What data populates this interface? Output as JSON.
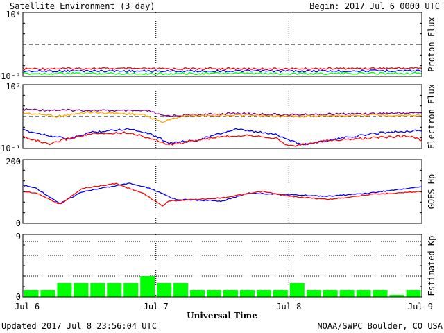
{
  "header": {
    "title": "Satellite Environment (3 day)",
    "begin": "Begin:  2017 Jul 6 0000 UTC"
  },
  "footer": {
    "updated": "Updated 2017 Jul  8 23:56:04 UTC",
    "credit": "NOAA/SWPC Boulder, CO USA"
  },
  "chart_data": [
    {
      "type": "line",
      "name": "proton",
      "ylabel": "Proton Flux",
      "yscale": "log",
      "ylim": [
        0.01,
        10000
      ],
      "yticks": [
        "10⁴",
        "10⁻²"
      ],
      "threshold": 10,
      "series": [
        {
          "color": "#ff0000",
          "x": [
            0,
            0.5,
            1,
            1.5,
            2,
            2.5,
            3
          ],
          "y": [
            0.05,
            0.055,
            0.05,
            0.052,
            0.05,
            0.055,
            0.06
          ]
        },
        {
          "color": "#0000ff",
          "x": [
            0,
            0.5,
            1,
            1.5,
            2,
            2.5,
            3
          ],
          "y": [
            0.03,
            0.032,
            0.03,
            0.031,
            0.03,
            0.032,
            0.034
          ]
        },
        {
          "color": "#00ff00",
          "x": [
            0,
            0.5,
            1,
            1.5,
            2,
            2.5,
            3
          ],
          "y": [
            0.018,
            0.019,
            0.018,
            0.019,
            0.018,
            0.019,
            0.02
          ]
        }
      ]
    },
    {
      "type": "line",
      "name": "electron",
      "ylabel": "Electron Flux",
      "yscale": "log",
      "ylim": [
        0.1,
        10000000
      ],
      "yticks": [
        "10⁷",
        "10⁻¹"
      ],
      "threshold": 1000,
      "series": [
        {
          "color": "#800080",
          "x": [
            0,
            0.15,
            0.5,
            0.95,
            1.05,
            1.3,
            1.6,
            2.0,
            2.5,
            3.0
          ],
          "y": [
            8000,
            6500,
            6000,
            4800,
            1200,
            1600,
            2500,
            1600,
            2200,
            3000
          ]
        },
        {
          "color": "#ffa500",
          "x": [
            0,
            0.2,
            0.25,
            0.5,
            0.9,
            1.0,
            1.05,
            1.2,
            1.5,
            2.0,
            2.5,
            3.0
          ],
          "y": [
            2800,
            1500,
            1000,
            3500,
            1800,
            400,
            200,
            1200,
            1600,
            1000,
            1500,
            1400
          ]
        },
        {
          "color": "#0000ff",
          "x": [
            0,
            0.2,
            0.35,
            0.5,
            0.8,
            0.95,
            1.1,
            1.3,
            1.6,
            1.9,
            2.1,
            2.4,
            2.7,
            3.0
          ],
          "y": [
            20,
            4,
            1.5,
            10,
            30,
            8,
            0.5,
            1,
            25,
            6,
            0.3,
            2,
            10,
            18
          ]
        },
        {
          "color": "#ff0000",
          "x": [
            0,
            0.1,
            0.2,
            0.3,
            0.5,
            0.8,
            0.95,
            1.1,
            1.3,
            1.5,
            1.7,
            1.9,
            2.0,
            2.1,
            2.3,
            2.6,
            2.9,
            3.0
          ],
          "y": [
            3,
            1,
            0.3,
            1.2,
            6,
            10,
            2,
            0.3,
            1,
            3,
            5,
            2,
            0.2,
            0.3,
            1,
            2,
            4,
            1
          ]
        }
      ]
    },
    {
      "type": "line",
      "name": "goes-hp",
      "ylabel": "GOES Hp",
      "ylim": [
        0,
        200
      ],
      "yticks": [
        "200",
        "0"
      ],
      "series": [
        {
          "color": "#0000ff",
          "x": [
            0,
            0.1,
            0.28,
            0.45,
            0.8,
            0.95,
            1.15,
            1.5,
            1.7,
            2.0,
            2.3,
            2.6,
            3.0
          ],
          "y": [
            120,
            110,
            62,
            100,
            125,
            110,
            75,
            70,
            95,
            90,
            85,
            95,
            115
          ]
        },
        {
          "color": "#ff0000",
          "x": [
            0,
            0.1,
            0.28,
            0.45,
            0.7,
            0.9,
            1.05,
            1.1,
            1.5,
            1.8,
            2.0,
            2.3,
            2.6,
            3.0
          ],
          "y": [
            100,
            95,
            60,
            110,
            125,
            95,
            55,
            70,
            80,
            100,
            85,
            75,
            90,
            100
          ]
        }
      ]
    },
    {
      "type": "bar",
      "name": "kp",
      "ylabel": "Estimated Kp",
      "ylim": [
        0,
        9
      ],
      "yticks": [
        "9",
        "0"
      ],
      "color": "#00ff00",
      "values": [
        1,
        1,
        2,
        2,
        2,
        2,
        2,
        3,
        2,
        2,
        1,
        1,
        1,
        1,
        1,
        1,
        2,
        1,
        1,
        1,
        1,
        1,
        0.3,
        1
      ]
    }
  ],
  "x_axis": {
    "label": "Universal Time",
    "ticks": [
      "Jul 6",
      "Jul 7",
      "Jul 8",
      "Jul 9"
    ]
  }
}
